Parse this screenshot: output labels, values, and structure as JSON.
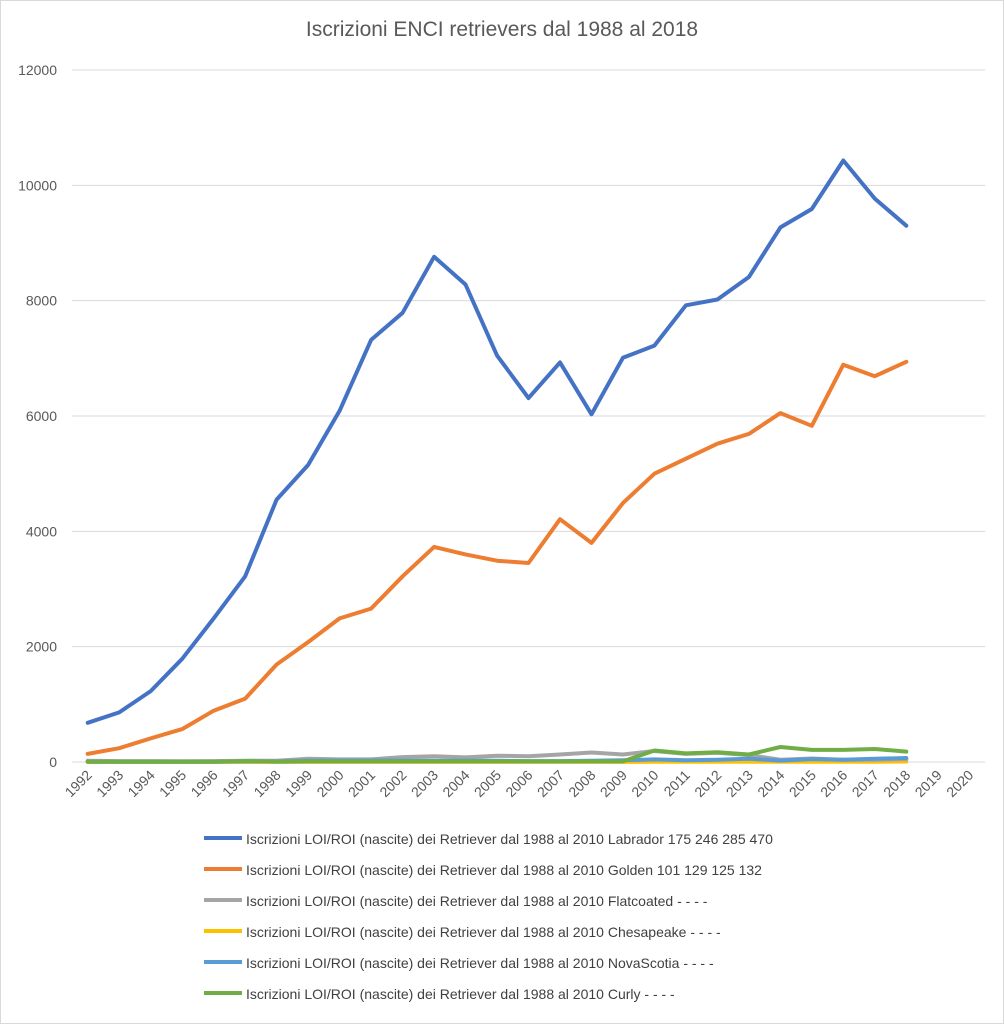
{
  "chart_data": {
    "type": "line",
    "title": "Iscrizioni ENCI retrievers dal 1988 al 2018",
    "xlabel": "",
    "ylabel": "",
    "categories": [
      "1992",
      "1993",
      "1994",
      "1995",
      "1996",
      "1997",
      "1998",
      "1999",
      "2000",
      "2001",
      "2002",
      "2003",
      "2004",
      "2005",
      "2006",
      "2007",
      "2008",
      "2009",
      "2010",
      "2011",
      "2012",
      "2013",
      "2014",
      "2015",
      "2016",
      "2017",
      "2018",
      "2019",
      "2020"
    ],
    "ylim": [
      0,
      12000
    ],
    "yticks": [
      "0",
      "2000",
      "4000",
      "6000",
      "8000",
      "10000",
      "12000"
    ],
    "grid": true,
    "legend_position": "bottom",
    "series": [
      {
        "name": "Iscrizioni LOI/ROI (nascite) dei Retriever dal 1988 al 2010 Labrador 175 246 285 470",
        "color": "#4472c4",
        "values": [
          680,
          860,
          1230,
          1790,
          2490,
          3220,
          4550,
          5150,
          6090,
          7320,
          7790,
          8760,
          8280,
          7050,
          6310,
          6930,
          6030,
          7010,
          7220,
          7920,
          8020,
          8410,
          9270,
          9590,
          10430,
          9770,
          9300,
          null,
          null
        ]
      },
      {
        "name": "Iscrizioni LOI/ROI (nascite) dei Retriever dal 1988 al 2010 Golden 101 129 125 132",
        "color": "#ed7d31",
        "values": [
          140,
          240,
          410,
          570,
          890,
          1100,
          1690,
          2080,
          2490,
          2660,
          3220,
          3730,
          3600,
          3490,
          3450,
          4210,
          3800,
          4490,
          5000,
          5260,
          5520,
          5690,
          6050,
          5830,
          6890,
          6690,
          6940,
          null,
          null
        ]
      },
      {
        "name": "Iscrizioni LOI/ROI (nascite) dei Retriever dal 1988 al 2010 Flatcoated - - - -",
        "color": "#a5a5a5",
        "values": [
          20,
          15,
          15,
          12,
          15,
          20,
          20,
          55,
          45,
          45,
          85,
          100,
          80,
          110,
          100,
          130,
          165,
          130,
          190,
          140,
          160,
          120,
          40,
          60,
          40,
          40,
          50,
          null,
          null
        ]
      },
      {
        "name": "Iscrizioni LOI/ROI (nascite) dei Retriever dal 1988 al 2010 Chesapeake - - - -",
        "color": "#ffc000",
        "values": [
          2,
          2,
          2,
          2,
          2,
          2,
          2,
          2,
          2,
          2,
          2,
          2,
          2,
          2,
          2,
          2,
          2,
          2,
          3,
          3,
          4,
          4,
          5,
          5,
          6,
          6,
          8,
          null,
          null
        ]
      },
      {
        "name": "Iscrizioni LOI/ROI (nascite) dei Retriever dal 1988 al 2010 NovaScotia - - - -",
        "color": "#5b9bd5",
        "values": [
          5,
          5,
          5,
          5,
          5,
          10,
          8,
          20,
          25,
          25,
          25,
          20,
          25,
          20,
          15,
          15,
          20,
          30,
          45,
          30,
          40,
          55,
          25,
          50,
          40,
          55,
          70,
          null,
          null
        ]
      },
      {
        "name": "Iscrizioni LOI/ROI (nascite) dei Retriever dal 1988 al 2010 Curly - - - -",
        "color": "#70ad47",
        "values": [
          5,
          5,
          5,
          5,
          5,
          15,
          5,
          10,
          10,
          10,
          10,
          10,
          10,
          10,
          10,
          10,
          10,
          10,
          200,
          150,
          170,
          130,
          260,
          210,
          210,
          225,
          180,
          null,
          null
        ]
      }
    ]
  }
}
